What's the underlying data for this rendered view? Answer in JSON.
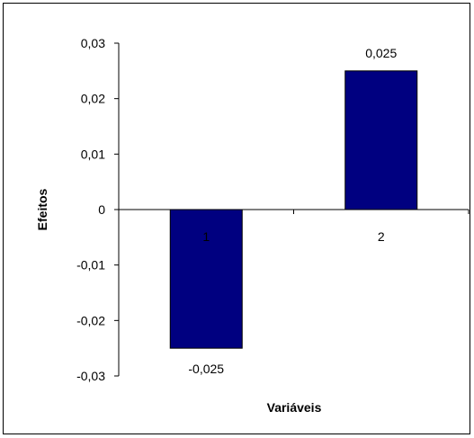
{
  "chart_data": {
    "type": "bar",
    "categories": [
      "1",
      "2"
    ],
    "values": [
      -0.025,
      0.025
    ],
    "data_labels": [
      "-0,025",
      "0,025"
    ],
    "title": "",
    "xlabel": "Variáveis",
    "ylabel": "Efeitos",
    "ylim": [
      -0.03,
      0.03
    ],
    "yticks": [
      0.03,
      0.02,
      0.01,
      0,
      -0.01,
      -0.02,
      -0.03
    ],
    "ytick_labels": [
      "0,03",
      "0,02",
      "0,01",
      "0",
      "-0,01",
      "-0,02",
      "-0,03"
    ],
    "grid": false,
    "legend": "none",
    "bar_color": "#000080"
  }
}
